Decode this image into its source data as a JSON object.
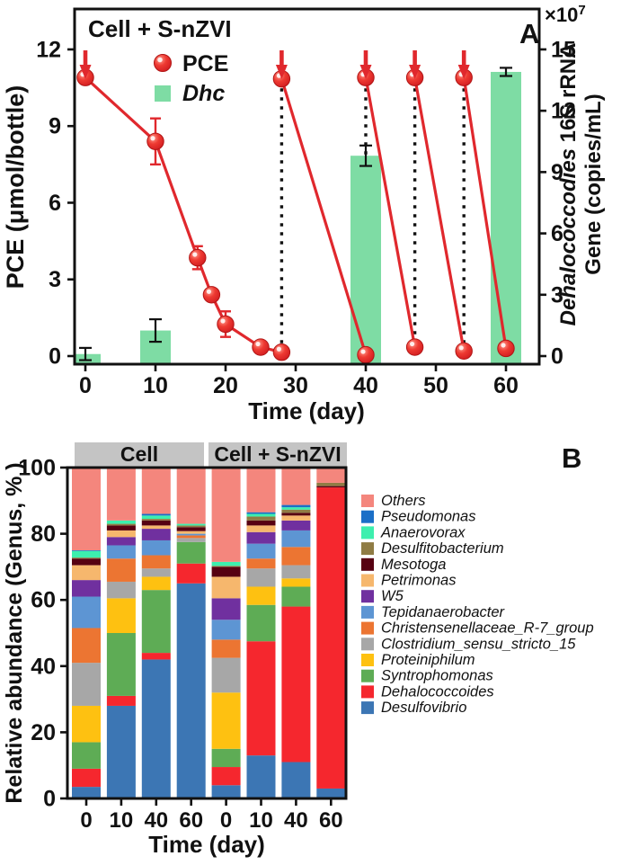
{
  "chart_data": [
    {
      "type": "line",
      "subtype": "dual-axis line + bar",
      "title": "Cell + S-nZVI",
      "panel_label": "A",
      "x_label": "Time (day)",
      "x_ticks": [
        0,
        10,
        20,
        30,
        40,
        50,
        60
      ],
      "left_axis": {
        "label": "PCE (μmol/bottle)",
        "ticks": [
          0,
          3,
          6,
          9,
          12
        ],
        "ylim": [
          0,
          13.5
        ]
      },
      "right_axis": {
        "genus": "Dehalococcodies",
        "rest": " 16S rRNA",
        "line2": "Gene (copies/mL)",
        "mult_base": "×10",
        "mult_exp": "7",
        "ticks": [
          0,
          3,
          6,
          9,
          12,
          15
        ],
        "ylim": [
          0,
          17
        ]
      },
      "legend": [
        {
          "label": "PCE",
          "marker": "circle",
          "color": "#e8332f"
        },
        {
          "label": "Dhc",
          "marker": "square",
          "color": "#7edca4"
        }
      ],
      "colors": {
        "pce": "#e0282d",
        "dhc": "#7edca4",
        "error_dark": "#111111"
      },
      "pce_points": [
        {
          "x": 0,
          "y": 10.9,
          "err": 0.2
        },
        {
          "x": 10,
          "y": 8.4,
          "err": 0.9
        },
        {
          "x": 16,
          "y": 3.85,
          "err": 0.45
        },
        {
          "x": 18,
          "y": 2.4,
          "err": 0.2
        },
        {
          "x": 20,
          "y": 1.25,
          "err": 0.5
        },
        {
          "x": 25,
          "y": 0.35,
          "err": 0.1
        },
        {
          "x": 28,
          "y": 0.15,
          "err": 0.05
        },
        {
          "x": 28,
          "y": 10.85,
          "err": 0.15
        },
        {
          "x": 40,
          "y": 0.05,
          "err": 0.05
        },
        {
          "x": 40,
          "y": 10.9,
          "err": 0.1
        },
        {
          "x": 47,
          "y": 0.35,
          "err": 0.1
        },
        {
          "x": 47,
          "y": 10.9,
          "err": 0.1
        },
        {
          "x": 54,
          "y": 0.2,
          "err": 0.08
        },
        {
          "x": 54,
          "y": 10.9,
          "err": 0.1
        },
        {
          "x": 60,
          "y": 0.3,
          "err": 0.1
        }
      ],
      "pce_segments": [
        [
          [
            0,
            10.9
          ],
          [
            10,
            8.4
          ],
          [
            16,
            3.85
          ],
          [
            18,
            2.4
          ],
          [
            20,
            1.25
          ],
          [
            25,
            0.35
          ],
          [
            28,
            0.15
          ]
        ],
        [
          [
            28,
            10.85
          ],
          [
            40,
            0.05
          ]
        ],
        [
          [
            40,
            10.9
          ],
          [
            47,
            0.35
          ]
        ],
        [
          [
            47,
            10.9
          ],
          [
            54,
            0.2
          ]
        ],
        [
          [
            54,
            10.9
          ],
          [
            60,
            0.3
          ]
        ]
      ],
      "dhc_bars": [
        {
          "x": 0,
          "value": 0.1,
          "err": 0.3
        },
        {
          "x": 10,
          "value": 1.25,
          "err": 0.55
        },
        {
          "x": 40,
          "value": 9.8,
          "err": 0.5
        },
        {
          "x": 60,
          "value": 13.9,
          "err": 0.2
        }
      ],
      "dhc_units": "1e7 copies/mL",
      "arrows_x": [
        0,
        28,
        40,
        47,
        54
      ],
      "dotted_lines_x": [
        28,
        40,
        47,
        54
      ]
    },
    {
      "type": "bar",
      "subtype": "stacked-100pct",
      "panel_label": "B",
      "y_label": "Relative abundance (Genus, % )",
      "x_label": "Time (day)",
      "y_ticks": [
        0,
        20,
        40,
        60,
        80,
        100
      ],
      "ylim": [
        0,
        100
      ],
      "groups": [
        {
          "label": "Cell",
          "days": [
            0,
            10,
            40,
            60
          ]
        },
        {
          "label": "Cell + S-nZVI",
          "days": [
            0,
            10,
            40,
            60
          ]
        }
      ],
      "header_bg": "#c4c4c4",
      "series": [
        {
          "name": "Desulfovibrio",
          "color": "#3c76b4",
          "values": [
            3.5,
            28,
            42,
            65,
            4,
            13,
            11,
            3
          ]
        },
        {
          "name": "Dehalococcoides",
          "color": "#f5272e",
          "values": [
            5.5,
            3,
            2,
            6,
            5.5,
            34.5,
            47,
            91
          ]
        },
        {
          "name": "Syntrophomonas",
          "color": "#5eac55",
          "values": [
            8,
            19,
            19,
            6.5,
            5.5,
            11,
            6,
            0
          ]
        },
        {
          "name": "Proteiniphilum",
          "color": "#fec111",
          "values": [
            11,
            10.5,
            4,
            0,
            17,
            5.5,
            2.5,
            0
          ]
        },
        {
          "name": "Clostridium_sensu_stricto_15",
          "color": "#a7a7a7",
          "values": [
            13,
            5,
            2.5,
            1.2,
            10.5,
            5.5,
            4,
            0
          ]
        },
        {
          "name": "Christensenellaceae_R-7_group",
          "color": "#ec7532",
          "values": [
            10.5,
            7,
            4,
            0.8,
            5.5,
            3,
            5.5,
            0
          ]
        },
        {
          "name": "Tepidanaerobacter",
          "color": "#5d95d3",
          "values": [
            9.5,
            4,
            4.5,
            0.5,
            6,
            4.5,
            5,
            0
          ]
        },
        {
          "name": "W5",
          "color": "#70309f",
          "values": [
            5,
            2.5,
            3.5,
            0,
            6.5,
            3.5,
            3,
            0
          ]
        },
        {
          "name": "Petrimonas",
          "color": "#f6b76d",
          "values": [
            4.5,
            2,
            1,
            0.8,
            6.5,
            2,
            1.5,
            0
          ]
        },
        {
          "name": "Mesotoga",
          "color": "#570112",
          "values": [
            2,
            1.5,
            1.5,
            1.2,
            3,
            1.5,
            0.8,
            0.4
          ]
        },
        {
          "name": "Desulfitobacterium",
          "color": "#8f7c44",
          "values": [
            0.3,
            0.5,
            0.5,
            0.5,
            0.3,
            1.2,
            1,
            1
          ]
        },
        {
          "name": "Anaerovorax",
          "color": "#3defae",
          "values": [
            2,
            1,
            1,
            0.5,
            1.2,
            0.8,
            0.7,
            0
          ]
        },
        {
          "name": "Pseudomonas",
          "color": "#1b6fc7",
          "values": [
            0.2,
            0,
            0.5,
            0,
            0,
            0.5,
            0.7,
            0
          ]
        },
        {
          "name": "Others",
          "color": "#f4867d",
          "values": [
            25,
            16,
            14,
            17,
            28.5,
            13.5,
            11.3,
            4.6
          ]
        }
      ],
      "legend_position": "right",
      "legend_order_note": "top-to-bottom: Others first, Desulfovibrio last"
    }
  ]
}
